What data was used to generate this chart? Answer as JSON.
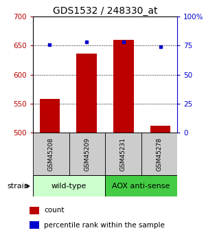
{
  "title": "GDS1532 / 248330_at",
  "samples": [
    "GSM45208",
    "GSM45209",
    "GSM45231",
    "GSM45278"
  ],
  "counts": [
    558,
    636,
    660,
    512
  ],
  "percentiles": [
    76,
    78,
    78,
    74
  ],
  "ylim_left": [
    500,
    700
  ],
  "ylim_right": [
    0,
    100
  ],
  "yticks_left": [
    500,
    550,
    600,
    650,
    700
  ],
  "yticks_right": [
    0,
    25,
    50,
    75,
    100
  ],
  "bar_color": "#bb0000",
  "dot_color": "#0000cc",
  "bar_width": 0.55,
  "wild_type_color": "#ccffcc",
  "aox_color": "#44cc44",
  "sample_box_color": "#cccccc",
  "title_fontsize": 10,
  "tick_fontsize": 7.5,
  "legend_fontsize": 7.5,
  "group_fontsize": 8,
  "sample_fontsize": 6.5
}
